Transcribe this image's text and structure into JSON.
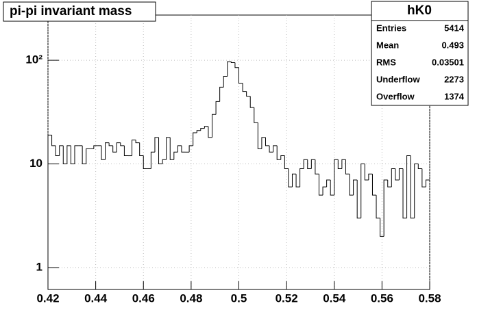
{
  "chart_data": {
    "type": "histogram",
    "title": "pi-pi invariant mass",
    "bins": [
      0.42,
      0.4216,
      0.4232,
      0.4248,
      0.4264,
      0.428,
      0.4296,
      0.4312,
      0.4328,
      0.4344,
      0.436,
      0.4376,
      0.4392,
      0.4408,
      0.4424,
      0.444,
      0.4456,
      0.4472,
      0.4488,
      0.4504,
      0.452,
      0.4536,
      0.4552,
      0.4568,
      0.4584,
      0.46,
      0.4616,
      0.4632,
      0.4648,
      0.4664,
      0.468,
      0.4696,
      0.4712,
      0.4728,
      0.4744,
      0.476,
      0.4776,
      0.4792,
      0.4808,
      0.4824,
      0.484,
      0.4856,
      0.4872,
      0.4888,
      0.4904,
      0.492,
      0.4936,
      0.4952,
      0.4968,
      0.4984,
      0.5,
      0.5016,
      0.5032,
      0.5048,
      0.5064,
      0.508,
      0.5096,
      0.5112,
      0.5128,
      0.5144,
      0.516,
      0.5176,
      0.5192,
      0.5208,
      0.5224,
      0.524,
      0.5256,
      0.5272,
      0.5288,
      0.5304,
      0.532,
      0.5336,
      0.5352,
      0.5368,
      0.5384,
      0.54,
      0.5416,
      0.5432,
      0.5448,
      0.5464,
      0.548,
      0.5496,
      0.5512,
      0.5528,
      0.5544,
      0.556,
      0.5576,
      0.5592,
      0.5608,
      0.5624,
      0.564,
      0.5656,
      0.5672,
      0.5688,
      0.5704,
      0.572,
      0.5736,
      0.5752,
      0.5768,
      0.5784,
      0.58
    ],
    "values": [
      19,
      15,
      12,
      15,
      10,
      15,
      10,
      15,
      15,
      10,
      14,
      14,
      15,
      15,
      11,
      16,
      15,
      13,
      16,
      15,
      12,
      12,
      17,
      16,
      12,
      9,
      9,
      13,
      18,
      10,
      11,
      18,
      11,
      13,
      15,
      13,
      13,
      15,
      20,
      21,
      22,
      23,
      18,
      30,
      40,
      55,
      70,
      97,
      95,
      85,
      60,
      50,
      45,
      35,
      25,
      14,
      18,
      15,
      13,
      15,
      11,
      12,
      9,
      6,
      8,
      6,
      9,
      11,
      9,
      11,
      8,
      5,
      6,
      7,
      5,
      11,
      9,
      11,
      8,
      5,
      7,
      3,
      10,
      7,
      8,
      5,
      3,
      2,
      7,
      6,
      9,
      7,
      9,
      3,
      12,
      3,
      10,
      9,
      6,
      7
    ],
    "color": "#000000",
    "xlim": [
      0.42,
      0.58
    ],
    "xticks": [
      0.42,
      0.44,
      0.46,
      0.48,
      0.5,
      0.52,
      0.54,
      0.56,
      0.58
    ],
    "ylim": [
      0.615,
      273
    ],
    "yticks": [
      1,
      10,
      {
        "value": 100,
        "label": "10²"
      }
    ],
    "log_y": true,
    "grid": true,
    "stats": {
      "title": "hK0",
      "rows": [
        [
          "Entries",
          "5414"
        ],
        [
          "Mean",
          "0.493"
        ],
        [
          "RMS",
          "0.03501"
        ],
        [
          "Underflow",
          "2273"
        ],
        [
          "Overflow",
          "1374"
        ]
      ]
    }
  }
}
